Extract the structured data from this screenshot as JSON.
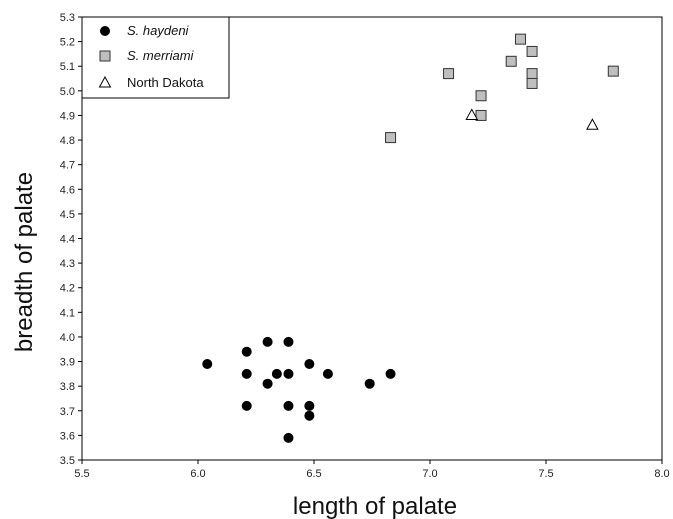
{
  "chart_data": {
    "type": "scatter",
    "xlabel": "length of palate",
    "ylabel": "breadth of palate",
    "xlim": [
      5.5,
      8.0
    ],
    "ylim": [
      3.5,
      5.3
    ],
    "x_ticks": [
      "5.5",
      "6.0",
      "6.5",
      "7.0",
      "7.5",
      "8.0"
    ],
    "y_ticks": [
      "3.5",
      "3.6",
      "3.7",
      "3.8",
      "3.9",
      "4.0",
      "4.1",
      "4.2",
      "4.3",
      "4.4",
      "4.5",
      "4.6",
      "4.7",
      "4.8",
      "4.9",
      "5.0",
      "5.1",
      "5.2",
      "5.3"
    ],
    "grid": false,
    "legend_position": "top-left",
    "series": [
      {
        "name": "S. haydeni",
        "marker": "filled-circle",
        "color": "#000000",
        "italic": true,
        "points": [
          [
            6.04,
            3.89
          ],
          [
            6.21,
            3.94
          ],
          [
            6.21,
            3.85
          ],
          [
            6.21,
            3.72
          ],
          [
            6.3,
            3.98
          ],
          [
            6.3,
            3.81
          ],
          [
            6.34,
            3.85
          ],
          [
            6.39,
            3.98
          ],
          [
            6.39,
            3.85
          ],
          [
            6.39,
            3.72
          ],
          [
            6.39,
            3.59
          ],
          [
            6.48,
            3.89
          ],
          [
            6.48,
            3.72
          ],
          [
            6.48,
            3.68
          ],
          [
            6.56,
            3.85
          ],
          [
            6.74,
            3.81
          ],
          [
            6.83,
            3.85
          ]
        ]
      },
      {
        "name": "S. merriami",
        "marker": "gray-square",
        "color": "#bfbfbf",
        "italic": true,
        "points": [
          [
            6.83,
            4.81
          ],
          [
            7.08,
            5.07
          ],
          [
            7.22,
            4.98
          ],
          [
            7.22,
            4.9
          ],
          [
            7.35,
            5.12
          ],
          [
            7.39,
            5.21
          ],
          [
            7.44,
            5.16
          ],
          [
            7.44,
            5.07
          ],
          [
            7.44,
            5.03
          ],
          [
            7.79,
            5.08
          ]
        ]
      },
      {
        "name": "North Dakota",
        "marker": "open-triangle",
        "color": "#ffffff",
        "italic": false,
        "points": [
          [
            7.18,
            4.9
          ],
          [
            7.7,
            4.86
          ]
        ]
      }
    ]
  }
}
